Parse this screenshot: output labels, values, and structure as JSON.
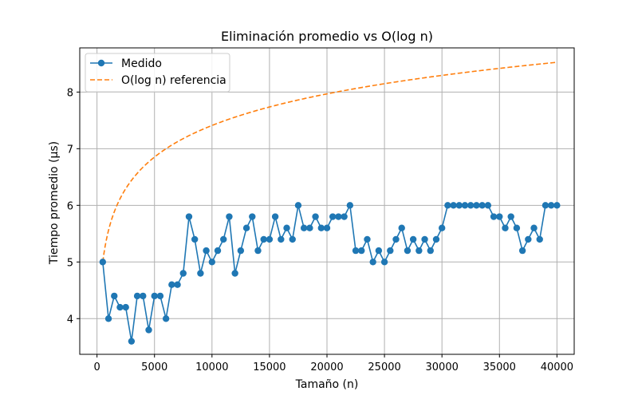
{
  "chart_data": {
    "type": "line",
    "title": "Eliminación promedio vs O(log n)",
    "xlabel": "Tamaño (n)",
    "ylabel": "Tiempo promedio (µs)",
    "xlim": [
      -1500,
      41500
    ],
    "ylim": [
      3.37,
      8.78
    ],
    "xticks": [
      0,
      5000,
      10000,
      15000,
      20000,
      25000,
      30000,
      35000,
      40000
    ],
    "yticks": [
      4,
      5,
      6,
      7,
      8
    ],
    "grid": true,
    "legend_position": "top-left",
    "series": [
      {
        "name": "Medido",
        "style": "solid-with-markers",
        "color": "#1f77b4",
        "x": [
          500,
          1000,
          1500,
          2000,
          2500,
          3000,
          3500,
          4000,
          4500,
          5000,
          5500,
          6000,
          6500,
          7000,
          7500,
          8000,
          8500,
          9000,
          9500,
          10000,
          10500,
          11000,
          11500,
          12000,
          12500,
          13000,
          13500,
          14000,
          14500,
          15000,
          15500,
          16000,
          16500,
          17000,
          17500,
          18000,
          18500,
          19000,
          19500,
          20000,
          20500,
          21000,
          21500,
          22000,
          22500,
          23000,
          23500,
          24000,
          24500,
          25000,
          25500,
          26000,
          26500,
          27000,
          27500,
          28000,
          28500,
          29000,
          29500,
          30000,
          30500,
          31000,
          31500,
          32000,
          32500,
          33000,
          33500,
          34000,
          34500,
          35000,
          35500,
          36000,
          36500,
          37000,
          37500,
          38000,
          38500,
          39000,
          39500,
          40000
        ],
        "y": [
          5.0,
          4.0,
          4.4,
          4.2,
          4.2,
          3.6,
          4.4,
          4.4,
          3.8,
          4.4,
          4.4,
          4.0,
          4.6,
          4.6,
          4.8,
          5.8,
          5.4,
          4.8,
          5.2,
          5.0,
          5.2,
          5.4,
          5.8,
          4.8,
          5.2,
          5.6,
          5.8,
          5.2,
          5.4,
          5.4,
          5.8,
          5.4,
          5.6,
          5.4,
          6.0,
          5.6,
          5.6,
          5.8,
          5.6,
          5.6,
          5.8,
          5.8,
          5.8,
          6.0,
          5.2,
          5.2,
          5.4,
          5.0,
          5.2,
          5.0,
          5.2,
          5.4,
          5.6,
          5.2,
          5.4,
          5.2,
          5.4,
          5.2,
          5.4,
          5.6,
          6.0,
          6.0,
          6.0,
          6.0,
          6.0,
          6.0,
          6.0,
          6.0,
          5.8,
          5.8,
          5.6,
          5.8,
          5.6,
          5.2,
          5.4,
          5.6,
          5.4,
          6.0,
          6.0,
          6.0
        ]
      },
      {
        "name": "O(log n) referencia",
        "style": "dashed",
        "color": "#ff7f0e",
        "formula": "5.0 * log(n) / log(500)",
        "x_range": [
          500,
          40000
        ]
      }
    ]
  }
}
